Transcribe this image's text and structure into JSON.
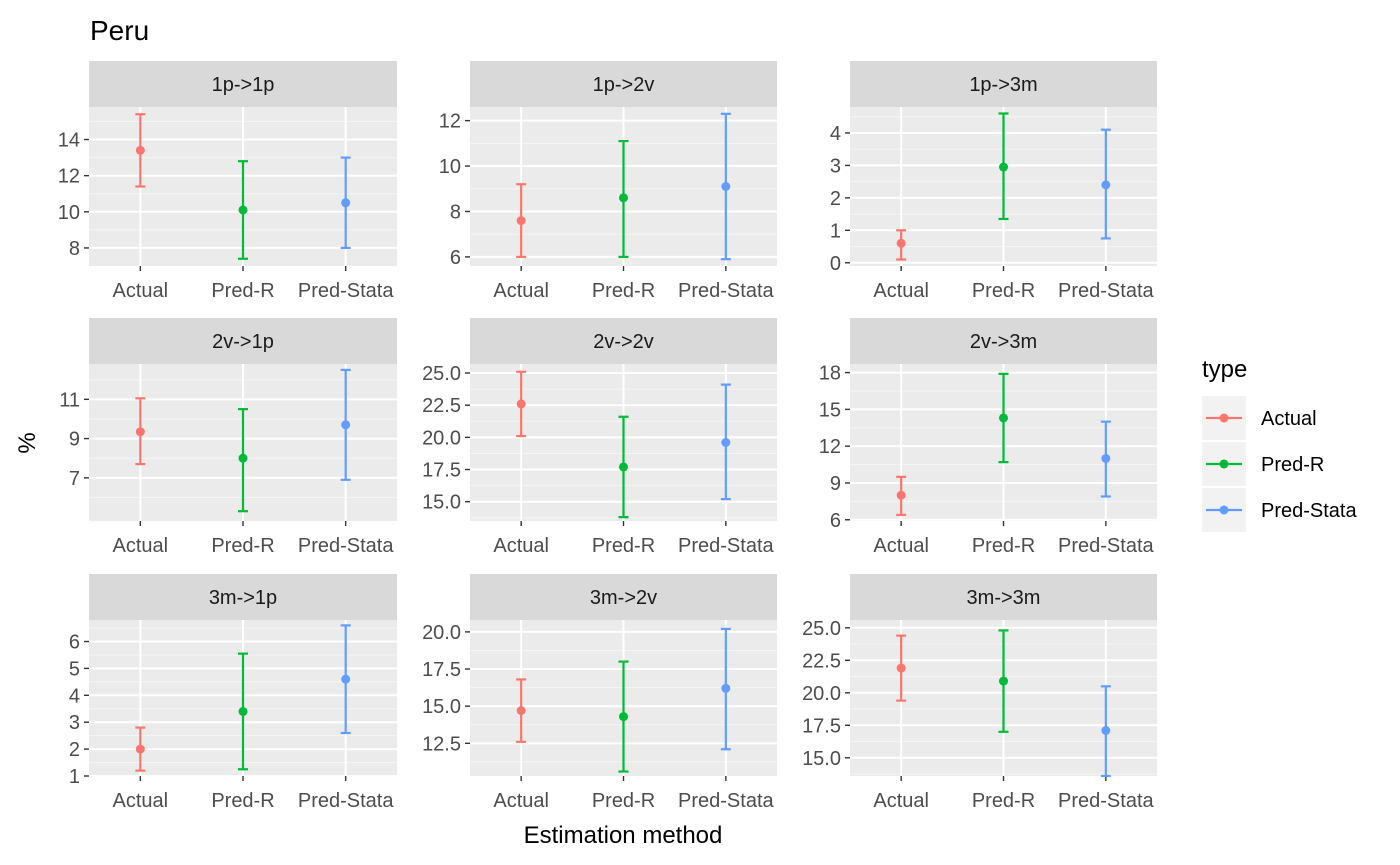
{
  "chart_data": {
    "type": "errorbar",
    "title": "Peru",
    "xlabel": "Estimation method",
    "ylabel": "%",
    "categories": [
      "Actual",
      "Pred-R",
      "Pred-Stata"
    ],
    "legend": {
      "title": "type",
      "placement": "right",
      "entries": [
        {
          "name": "Actual",
          "color": "#F8766D"
        },
        {
          "name": "Pred-R",
          "color": "#00BA38"
        },
        {
          "name": "Pred-Stata",
          "color": "#619CFF"
        }
      ]
    },
    "panels": [
      {
        "label": "1p->1p",
        "ylim": [
          7,
          15.8
        ],
        "yticks": [
          8,
          10,
          12,
          14
        ],
        "points": [
          {
            "value": 13.4,
            "lo": 11.4,
            "hi": 15.4
          },
          {
            "value": 10.1,
            "lo": 7.4,
            "hi": 12.8
          },
          {
            "value": 10.5,
            "lo": 8.0,
            "hi": 13.0
          }
        ]
      },
      {
        "label": "1p->2v",
        "ylim": [
          5.6,
          12.6
        ],
        "yticks": [
          6,
          8,
          10,
          12
        ],
        "points": [
          {
            "value": 7.6,
            "lo": 6.0,
            "hi": 9.2
          },
          {
            "value": 8.6,
            "lo": 6.0,
            "hi": 11.1
          },
          {
            "value": 9.1,
            "lo": 5.9,
            "hi": 12.3
          }
        ]
      },
      {
        "label": "1p->3m",
        "ylim": [
          -0.1,
          4.8
        ],
        "yticks": [
          0,
          1,
          2,
          3,
          4
        ],
        "points": [
          {
            "value": 0.6,
            "lo": 0.1,
            "hi": 1.0
          },
          {
            "value": 2.95,
            "lo": 1.35,
            "hi": 4.6
          },
          {
            "value": 2.4,
            "lo": 0.75,
            "hi": 4.1
          }
        ]
      },
      {
        "label": "2v->1p",
        "ylim": [
          4.8,
          12.8
        ],
        "yticks": [
          7,
          9,
          11
        ],
        "points": [
          {
            "value": 9.35,
            "lo": 7.7,
            "hi": 11.05
          },
          {
            "value": 8.0,
            "lo": 5.3,
            "hi": 10.5
          },
          {
            "value": 9.7,
            "lo": 6.9,
            "hi": 12.5
          }
        ]
      },
      {
        "label": "2v->2v",
        "ylim": [
          13.5,
          25.7
        ],
        "yticks": [
          15.0,
          17.5,
          20.0,
          22.5,
          25.0
        ],
        "ytick_labels": [
          "15.0",
          "17.5",
          "20.0",
          "22.5",
          "25.0"
        ],
        "points": [
          {
            "value": 22.6,
            "lo": 20.1,
            "hi": 25.1
          },
          {
            "value": 17.7,
            "lo": 13.8,
            "hi": 21.6
          },
          {
            "value": 19.6,
            "lo": 15.2,
            "hi": 24.1
          }
        ]
      },
      {
        "label": "2v->3m",
        "ylim": [
          5.9,
          18.7
        ],
        "yticks": [
          6,
          9,
          12,
          15,
          18
        ],
        "points": [
          {
            "value": 8.0,
            "lo": 6.4,
            "hi": 9.5
          },
          {
            "value": 14.3,
            "lo": 10.7,
            "hi": 17.9
          },
          {
            "value": 11.0,
            "lo": 7.9,
            "hi": 14.0
          }
        ]
      },
      {
        "label": "3m->1p",
        "ylim": [
          1,
          6.8
        ],
        "yticks": [
          1,
          2,
          3,
          4,
          5,
          6
        ],
        "points": [
          {
            "value": 2.0,
            "lo": 1.2,
            "hi": 2.8
          },
          {
            "value": 3.4,
            "lo": 1.25,
            "hi": 5.55
          },
          {
            "value": 4.6,
            "lo": 2.6,
            "hi": 6.6
          }
        ]
      },
      {
        "label": "3m->2v",
        "ylim": [
          10.3,
          20.8
        ],
        "yticks": [
          12.5,
          15.0,
          17.5,
          20.0
        ],
        "ytick_labels": [
          "12.5",
          "15.0",
          "17.5",
          "20.0"
        ],
        "points": [
          {
            "value": 14.7,
            "lo": 12.6,
            "hi": 16.8
          },
          {
            "value": 14.3,
            "lo": 10.6,
            "hi": 18.0
          },
          {
            "value": 16.2,
            "lo": 12.1,
            "hi": 20.2
          }
        ]
      },
      {
        "label": "3m->3m",
        "ylim": [
          13.6,
          25.6
        ],
        "yticks": [
          15.0,
          17.5,
          20.0,
          22.5,
          25.0
        ],
        "ytick_labels": [
          "15.0",
          "17.5",
          "20.0",
          "22.5",
          "25.0"
        ],
        "points": [
          {
            "value": 21.9,
            "lo": 19.4,
            "hi": 24.4
          },
          {
            "value": 20.9,
            "lo": 17.0,
            "hi": 24.8
          },
          {
            "value": 17.1,
            "lo": 13.6,
            "hi": 20.5
          }
        ]
      }
    ]
  }
}
